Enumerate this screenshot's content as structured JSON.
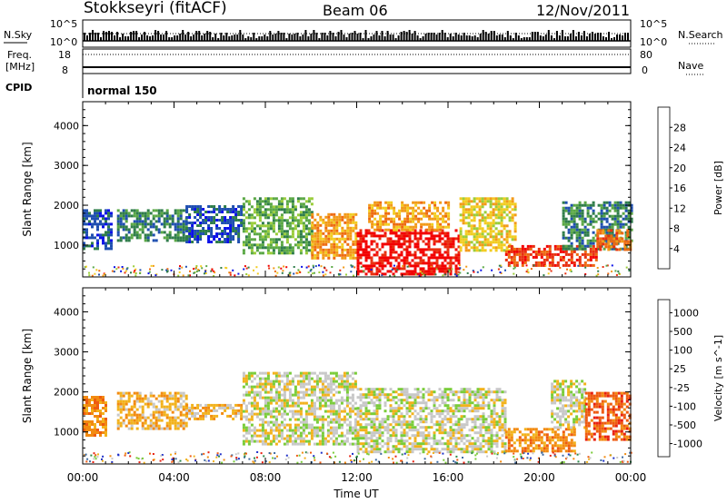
{
  "header": {
    "station": "Stokkseyri (fitACF)",
    "beam": "Beam 06",
    "date": "12/Nov/2011"
  },
  "small_panels": {
    "nsky_label": "N.Sky",
    "nsky_top": "10^5",
    "nsky_bottom": "10^0",
    "nsearch_label": "N.Search",
    "nsearch_top": "10^5",
    "nsearch_bottom": "10^0",
    "freq_label_line1": "Freq.",
    "freq_label_line2": "[MHz]",
    "freq_tick_high": "18",
    "freq_tick_low": "8",
    "nave_label": "Nave",
    "nave_tick_high": "80",
    "nave_tick_low": "0",
    "cpid_label": "CPID",
    "cpid_value": "normal 150"
  },
  "chart_data": [
    {
      "type": "heatmap",
      "panel": "power",
      "xlabel": "Time UT",
      "ylabel": "Slant Range [km]",
      "x_ticks": [
        "00:00",
        "04:00",
        "08:00",
        "12:00",
        "16:00",
        "20:00",
        "00:00"
      ],
      "x_range_hours": [
        0,
        24
      ],
      "y_ticks": [
        1000,
        2000,
        3000,
        4000
      ],
      "ylim": [
        200,
        4600
      ],
      "colorbar": {
        "label": "Power [dB]",
        "tick_labels": [
          "4",
          "8",
          "12",
          "16",
          "20",
          "24",
          "28"
        ],
        "colors": [
          "#0a10e8",
          "#1f4fb0",
          "#2f7d4a",
          "#5aa845",
          "#9acd3a",
          "#f2cc20",
          "#f29a18",
          "#ee6a10",
          "#e83010",
          "#f20000"
        ]
      },
      "regions": [
        {
          "t0": 0.0,
          "t1": 1.2,
          "r0": 900,
          "r1": 1900,
          "level": 1
        },
        {
          "t0": 1.5,
          "t1": 4.5,
          "r0": 1100,
          "r1": 1900,
          "level": 2
        },
        {
          "t0": 4.5,
          "t1": 7.0,
          "r0": 1100,
          "r1": 2000,
          "level": 1
        },
        {
          "t0": 7.0,
          "t1": 10.0,
          "r0": 800,
          "r1": 2200,
          "level": 3
        },
        {
          "t0": 10.0,
          "t1": 12.0,
          "r0": 700,
          "r1": 1800,
          "level": 6
        },
        {
          "t0": 12.0,
          "t1": 16.5,
          "r0": 300,
          "r1": 1400,
          "level": 9
        },
        {
          "t0": 12.5,
          "t1": 16.0,
          "r0": 1400,
          "r1": 2100,
          "level": 6
        },
        {
          "t0": 16.5,
          "t1": 19.0,
          "r0": 900,
          "r1": 2200,
          "level": 5
        },
        {
          "t0": 18.5,
          "t1": 22.5,
          "r0": 500,
          "r1": 1000,
          "level": 8
        },
        {
          "t0": 21.0,
          "t1": 24.0,
          "r0": 900,
          "r1": 2100,
          "level": 2
        },
        {
          "t0": 22.5,
          "t1": 24.0,
          "r0": 900,
          "r1": 1400,
          "level": 7
        }
      ]
    },
    {
      "type": "heatmap",
      "panel": "velocity",
      "xlabel": "Time UT",
      "ylabel": "Slant Range [km]",
      "x_ticks": [
        "00:00",
        "04:00",
        "08:00",
        "12:00",
        "16:00",
        "20:00",
        "00:00"
      ],
      "x_range_hours": [
        0,
        24
      ],
      "y_ticks": [
        1000,
        2000,
        3000,
        4000
      ],
      "ylim": [
        200,
        4600
      ],
      "colorbar": {
        "label": "Velocity [m s^-1]",
        "tick_labels": [
          "1000",
          "500",
          "100",
          "25",
          "-25",
          "-100",
          "-500",
          "-1000"
        ],
        "colors": [
          "#1f30c8",
          "#3e6aa0",
          "#2d8a4a",
          "#7acc3a",
          "#c8c8c8",
          "#f2b21c",
          "#f28a10",
          "#ee5a10",
          "#e82010"
        ]
      },
      "regions": [
        {
          "t0": 0.0,
          "t1": 1.0,
          "r0": 900,
          "r1": 1900,
          "level": 6
        },
        {
          "t0": 1.5,
          "t1": 4.5,
          "r0": 1100,
          "r1": 2000,
          "level": 5
        },
        {
          "t0": 4.5,
          "t1": 7.0,
          "r0": 1300,
          "r1": 1700,
          "level": 5
        },
        {
          "t0": 7.0,
          "t1": 12.0,
          "r0": 700,
          "r1": 2500,
          "level": 4
        },
        {
          "t0": 12.0,
          "t1": 18.5,
          "r0": 500,
          "r1": 2100,
          "level": 4
        },
        {
          "t0": 18.5,
          "t1": 21.5,
          "r0": 500,
          "r1": 1100,
          "level": 6
        },
        {
          "t0": 20.5,
          "t1": 22.0,
          "r0": 1100,
          "r1": 2300,
          "level": 4
        },
        {
          "t0": 22.0,
          "t1": 24.0,
          "r0": 800,
          "r1": 2000,
          "level": 7
        }
      ]
    }
  ]
}
